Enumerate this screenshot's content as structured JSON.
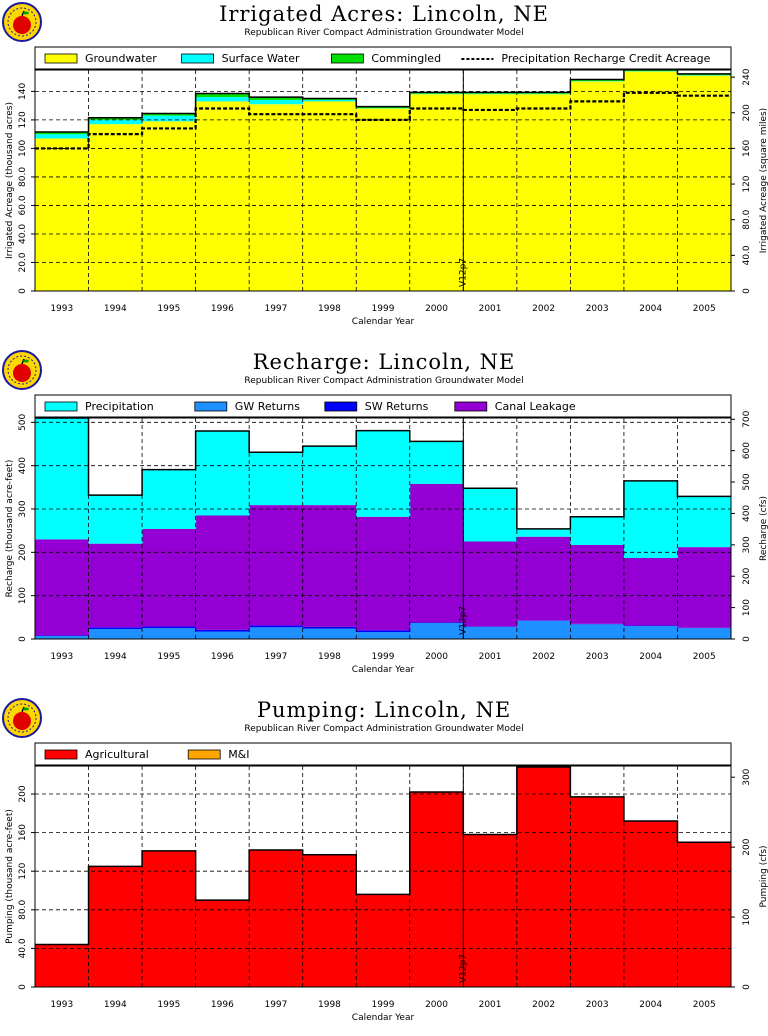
{
  "chart_data": [
    {
      "type": "area",
      "title": "Irrigated Acres: Lincoln, NE",
      "subtitle": "Republican River Compact Administration Groundwater Model",
      "xlabel": "Calendar Year",
      "ylabel": "Irrigated Acreage (thousand acres)",
      "ylabel_right": "Irrigated Acreage (square miles)",
      "marker_label": "V12p7",
      "marker_x": 2000.5,
      "categories": [
        "1993",
        "1994",
        "1995",
        "1996",
        "1997",
        "1998",
        "1999",
        "2000",
        "2001",
        "2002",
        "2003",
        "2004",
        "2005"
      ],
      "ylim": [
        0,
        155
      ],
      "yticks": [
        "0",
        "20.0",
        "40.0",
        "60.0",
        "80.0",
        "100",
        "120",
        "140"
      ],
      "ytick_values": [
        0,
        20,
        40,
        60,
        80,
        100,
        120,
        140
      ],
      "y2lim": [
        0,
        248
      ],
      "y2ticks": [
        "0",
        "40.0",
        "80.0",
        "120",
        "160",
        "200",
        "240"
      ],
      "y2tick_values": [
        0,
        40,
        80,
        120,
        160,
        200,
        240
      ],
      "stacked": true,
      "series": [
        {
          "name": "Groundwater",
          "color": "#ffff00",
          "values": [
            107,
            117,
            119,
            133,
            131,
            133,
            128,
            138,
            138,
            138,
            147,
            154,
            151
          ]
        },
        {
          "name": "Surface Water",
          "color": "#00ffff",
          "values": [
            3,
            3,
            4,
            3,
            3,
            1,
            0.3,
            0.3,
            0.3,
            0.3,
            0.3,
            0.3,
            0.3
          ]
        },
        {
          "name": "Commingled",
          "color": "#00e000",
          "values": [
            1.5,
            1.5,
            1.5,
            2.5,
            2,
            1,
            1,
            1,
            1,
            1,
            1,
            1,
            1
          ]
        }
      ],
      "line_series": {
        "name": "Precipitation Recharge Credit Acreage",
        "values": [
          100,
          110,
          114,
          128,
          124,
          124,
          120,
          128,
          127,
          128,
          133,
          139,
          137
        ]
      },
      "legend": "top"
    },
    {
      "type": "area",
      "title": "Recharge: Lincoln, NE",
      "subtitle": "Republican River Compact Administration Groundwater Model",
      "xlabel": "Calendar Year",
      "ylabel": "Recharge (thousand acre-feet)",
      "ylabel_right": "Recharge (cfs)",
      "marker_label": "V12p7",
      "marker_x": 2000.5,
      "categories": [
        "1993",
        "1994",
        "1995",
        "1996",
        "1997",
        "1998",
        "1999",
        "2000",
        "2001",
        "2002",
        "2003",
        "2004",
        "2005"
      ],
      "ylim": [
        0,
        510
      ],
      "yticks": [
        "0",
        "100",
        "200",
        "300",
        "400",
        "500"
      ],
      "ytick_values": [
        0,
        100,
        200,
        300,
        400,
        500
      ],
      "y2lim": [
        0,
        704
      ],
      "y2ticks": [
        "0",
        "100",
        "200",
        "300",
        "400",
        "500",
        "600",
        "700"
      ],
      "y2tick_values": [
        0,
        100,
        200,
        300,
        400,
        500,
        600,
        700
      ],
      "stacked": true,
      "series": [
        {
          "name": "GW Returns",
          "color": "#1e90ff",
          "values": [
            7,
            23,
            25,
            17,
            27,
            24,
            16,
            37,
            28,
            42,
            34,
            30,
            25
          ]
        },
        {
          "name": "SW Returns",
          "color": "#0000ff",
          "values": [
            1,
            4,
            4,
            4,
            4,
            4,
            4,
            1,
            1,
            1,
            1,
            1,
            1
          ]
        },
        {
          "name": "Canal Leakage",
          "color": "#9400d3",
          "values": [
            222,
            193,
            225,
            264,
            278,
            281,
            262,
            320,
            196,
            193,
            182,
            156,
            186
          ]
        },
        {
          "name": "Precipitation",
          "color": "#00ffff",
          "values": [
            280,
            112,
            137,
            195,
            122,
            136,
            199,
            98,
            123,
            18,
            65,
            178,
            117
          ]
        }
      ],
      "legend_order": [
        "Precipitation",
        "GW Returns",
        "SW Returns",
        "Canal Leakage"
      ],
      "legend": "top"
    },
    {
      "type": "area",
      "title": "Pumping: Lincoln, NE",
      "subtitle": "Republican River Compact Administration Groundwater Model",
      "xlabel": "Calendar Year",
      "ylabel": "Pumping (thousand acre-feet)",
      "ylabel_right": "Pumping (cfs)",
      "marker_label": "V12p7",
      "marker_x": 2000.5,
      "categories": [
        "1993",
        "1994",
        "1995",
        "1996",
        "1997",
        "1998",
        "1999",
        "2000",
        "2001",
        "2002",
        "2003",
        "2004",
        "2005"
      ],
      "ylim": [
        0,
        229
      ],
      "yticks": [
        "0",
        "40.0",
        "80.0",
        "120",
        "160",
        "200"
      ],
      "ytick_values": [
        0,
        40,
        80,
        120,
        160,
        200
      ],
      "y2lim": [
        0,
        316
      ],
      "y2ticks": [
        "0",
        "100",
        "200",
        "300"
      ],
      "y2tick_values": [
        0,
        100,
        200,
        300
      ],
      "stacked": true,
      "series": [
        {
          "name": "Agricultural",
          "color": "#ff0000",
          "values": [
            44,
            125,
            141,
            90,
            142,
            137,
            96,
            202,
            158,
            228,
            197,
            172,
            150
          ]
        },
        {
          "name": "M&I",
          "color": "#ffa500",
          "values": [
            0,
            0,
            0,
            0,
            0,
            0,
            0,
            0,
            0,
            0,
            0,
            0,
            0
          ]
        }
      ],
      "legend": "top"
    }
  ]
}
